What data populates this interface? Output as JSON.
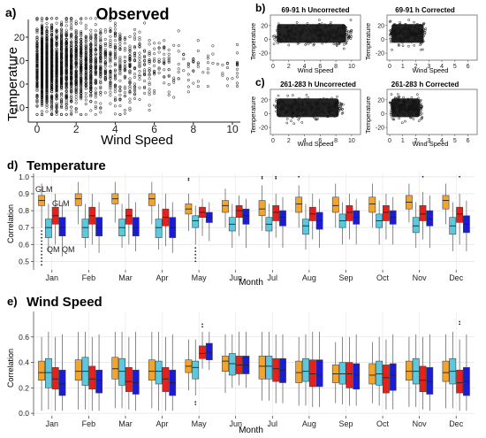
{
  "panels": {
    "a": {
      "letter": "a)",
      "title": "Observed",
      "xlabel": "Wind Speed",
      "ylabel": "Temperature",
      "xticks": [
        "0",
        "2",
        "4",
        "6",
        "8",
        "10"
      ],
      "yticks": [
        "-10",
        "0",
        "10",
        "20"
      ]
    },
    "b": {
      "letter": "b)",
      "left_title": "69-91 h Uncorrected",
      "right_title": "69-91 h Corrected",
      "xlabel": "Wind Speed",
      "ylabel": "Temperature",
      "left_xticks": [
        "0",
        "2",
        "4",
        "6",
        "8",
        "10"
      ],
      "right_xticks": [
        "0",
        "1",
        "2",
        "3",
        "4",
        "5",
        "6"
      ],
      "yticks": [
        "-20",
        "0",
        "20"
      ]
    },
    "c": {
      "letter": "c)",
      "left_title": "261-283 h Uncorrected",
      "right_title": "261-283 h Corrected",
      "xlabel": "Wind Speed",
      "ylabel": "Temperature",
      "left_xticks": [
        "0",
        "2",
        "4",
        "6",
        "8",
        "10"
      ],
      "right_xticks": [
        "0",
        "1",
        "2",
        "3",
        "4",
        "5",
        "6"
      ],
      "yticks": [
        "-20",
        "0",
        "20"
      ]
    },
    "d": {
      "letter": "d)",
      "title": "Temperature",
      "xlabel": "Month",
      "ylabel": "Correlation",
      "yticks": [
        "0.5",
        "0.6",
        "0.7",
        "0.8",
        "0.9",
        "1.0"
      ],
      "annotations": [
        "GLM",
        "GLM",
        "QM",
        "QM"
      ]
    },
    "e": {
      "letter": "e)",
      "title": "Wind Speed",
      "xlabel": "Month",
      "ylabel": "Correlation",
      "yticks": [
        "0.0",
        "0.2",
        "0.4",
        "0.6"
      ]
    }
  },
  "colors": {
    "orange": "#f2a52a",
    "cyan": "#5bc8dd",
    "red": "#e8201c",
    "blue": "#1b1bd6",
    "points": "#111111",
    "grid": "#e6e6e6"
  },
  "chart_data": [
    {
      "type": "scatter",
      "panel": "a",
      "title": "Observed",
      "xlabel": "Wind Speed",
      "ylabel": "Temperature",
      "xlim": [
        -0.5,
        10.5
      ],
      "ylim": [
        -17,
        32
      ],
      "grid": false,
      "description_of_cloud": {
        "x_range": [
          0,
          10.3
        ],
        "y_range": [
          -13,
          28
        ]
      }
    },
    {
      "type": "scatter",
      "panel": "b-left",
      "title": "69-91 h Uncorrected",
      "xlabel": "Wind Speed",
      "ylabel": "Temperature",
      "xlim": [
        -0.3,
        10.8
      ],
      "ylim": [
        -28,
        34
      ],
      "description_of_cloud": {
        "x_range": [
          0,
          10
        ],
        "y_range": [
          -15,
          28
        ]
      }
    },
    {
      "type": "scatter",
      "panel": "b-right",
      "title": "69-91 h Corrected",
      "xlabel": "Wind Speed",
      "ylabel": "Temperature",
      "xlim": [
        -0.2,
        6.5
      ],
      "ylim": [
        -28,
        34
      ],
      "description_of_cloud": {
        "x_range": [
          0,
          2.8
        ],
        "y_range": [
          -15,
          28
        ]
      }
    },
    {
      "type": "scatter",
      "panel": "c-left",
      "title": "261-283 h Uncorrected",
      "xlabel": "Wind Speed",
      "ylabel": "Temperature",
      "xlim": [
        -0.3,
        10.8
      ],
      "ylim": [
        -28,
        34
      ],
      "description_of_cloud": {
        "x_range": [
          0,
          9
        ],
        "y_range": [
          -15,
          25
        ]
      }
    },
    {
      "type": "scatter",
      "panel": "c-right",
      "title": "261-283 h Corrected",
      "xlabel": "Wind Speed",
      "ylabel": "Temperature",
      "xlim": [
        -0.2,
        6.5
      ],
      "ylim": [
        -28,
        34
      ],
      "description_of_cloud": {
        "x_range": [
          0,
          2.5
        ],
        "y_range": [
          -15,
          28
        ]
      }
    },
    {
      "type": "box",
      "panel": "d",
      "title": "Temperature",
      "xlabel": "Month",
      "ylabel": "Correlation",
      "ylim": [
        0.45,
        1.02
      ],
      "categories": [
        "Jan",
        "Feb",
        "Mar",
        "Apr",
        "May",
        "Jun",
        "Jul",
        "Aug",
        "Sep",
        "Oct",
        "Nov",
        "Dec"
      ],
      "series_order": [
        "orange",
        "cyan",
        "red",
        "blue"
      ],
      "boxes": [
        [
          [
            0.7,
            0.83,
            0.86,
            0.89,
            0.96
          ],
          [
            0.56,
            0.64,
            0.7,
            0.75,
            0.84
          ],
          [
            0.6,
            0.72,
            0.77,
            0.82,
            0.9
          ],
          [
            0.53,
            0.65,
            0.7,
            0.76,
            0.85
          ]
        ],
        [
          [
            0.72,
            0.83,
            0.87,
            0.9,
            0.97
          ],
          [
            0.58,
            0.64,
            0.7,
            0.75,
            0.84
          ],
          [
            0.6,
            0.72,
            0.77,
            0.82,
            0.9
          ],
          [
            0.55,
            0.65,
            0.7,
            0.76,
            0.85
          ]
        ],
        [
          [
            0.73,
            0.84,
            0.87,
            0.9,
            0.97
          ],
          [
            0.58,
            0.65,
            0.7,
            0.75,
            0.84
          ],
          [
            0.6,
            0.72,
            0.77,
            0.81,
            0.9
          ],
          [
            0.56,
            0.65,
            0.7,
            0.76,
            0.85
          ]
        ],
        [
          [
            0.72,
            0.83,
            0.87,
            0.9,
            0.97
          ],
          [
            0.57,
            0.64,
            0.7,
            0.75,
            0.84
          ],
          [
            0.59,
            0.71,
            0.76,
            0.81,
            0.9
          ],
          [
            0.55,
            0.64,
            0.7,
            0.76,
            0.85
          ]
        ],
        [
          [
            0.68,
            0.78,
            0.81,
            0.84,
            0.9
          ],
          [
            0.6,
            0.7,
            0.74,
            0.77,
            0.83
          ],
          [
            0.65,
            0.76,
            0.79,
            0.82,
            0.87
          ],
          [
            0.62,
            0.73,
            0.76,
            0.79,
            0.85
          ]
        ],
        [
          [
            0.7,
            0.79,
            0.83,
            0.86,
            0.93
          ],
          [
            0.58,
            0.68,
            0.72,
            0.76,
            0.84
          ],
          [
            0.65,
            0.76,
            0.8,
            0.83,
            0.89
          ],
          [
            0.58,
            0.72,
            0.77,
            0.81,
            0.87
          ]
        ],
        [
          [
            0.68,
            0.77,
            0.81,
            0.86,
            0.95
          ],
          [
            0.58,
            0.68,
            0.72,
            0.76,
            0.84
          ],
          [
            0.64,
            0.74,
            0.79,
            0.83,
            0.9
          ],
          [
            0.58,
            0.71,
            0.76,
            0.8,
            0.88
          ]
        ],
        [
          [
            0.7,
            0.79,
            0.84,
            0.88,
            0.95
          ],
          [
            0.57,
            0.66,
            0.71,
            0.75,
            0.84
          ],
          [
            0.63,
            0.74,
            0.78,
            0.82,
            0.9
          ],
          [
            0.58,
            0.69,
            0.74,
            0.79,
            0.87
          ]
        ],
        [
          [
            0.7,
            0.79,
            0.83,
            0.88,
            0.96
          ],
          [
            0.6,
            0.7,
            0.74,
            0.78,
            0.85
          ],
          [
            0.63,
            0.74,
            0.79,
            0.83,
            0.9
          ],
          [
            0.6,
            0.72,
            0.76,
            0.8,
            0.87
          ]
        ],
        [
          [
            0.7,
            0.79,
            0.84,
            0.88,
            0.96
          ],
          [
            0.6,
            0.7,
            0.74,
            0.78,
            0.86
          ],
          [
            0.63,
            0.74,
            0.79,
            0.83,
            0.9
          ],
          [
            0.6,
            0.72,
            0.76,
            0.8,
            0.88
          ]
        ],
        [
          [
            0.73,
            0.81,
            0.85,
            0.89,
            0.96
          ],
          [
            0.58,
            0.67,
            0.71,
            0.76,
            0.85
          ],
          [
            0.63,
            0.74,
            0.78,
            0.83,
            0.91
          ],
          [
            0.58,
            0.71,
            0.75,
            0.8,
            0.89
          ]
        ],
        [
          [
            0.72,
            0.81,
            0.86,
            0.89,
            0.96
          ],
          [
            0.56,
            0.66,
            0.71,
            0.76,
            0.85
          ],
          [
            0.6,
            0.73,
            0.78,
            0.82,
            0.9
          ],
          [
            0.56,
            0.67,
            0.72,
            0.77,
            0.86
          ]
        ]
      ],
      "outliers": [
        {
          "month": 0,
          "series": 0,
          "values": [
            0.68,
            0.66,
            0.64,
            0.62,
            0.6,
            0.58,
            0.56,
            0.54,
            0.52,
            0.5,
            0.48
          ]
        },
        {
          "month": 4,
          "series": 0,
          "values": [
            0.99,
            0.98
          ]
        },
        {
          "month": 4,
          "series": 1,
          "values": [
            0.58,
            0.56,
            0.54,
            0.52,
            0.5
          ]
        },
        {
          "month": 6,
          "series": 0,
          "values": [
            1.0,
            0.99
          ]
        },
        {
          "month": 6,
          "series": 2,
          "values": [
            1.0,
            0.99
          ]
        },
        {
          "month": 7,
          "series": 0,
          "values": [
            1.0
          ]
        },
        {
          "month": 10,
          "series": 2,
          "values": [
            1.0
          ]
        },
        {
          "month": 11,
          "series": 2,
          "values": [
            1.0
          ]
        }
      ]
    },
    {
      "type": "box",
      "panel": "e",
      "title": "Wind Speed",
      "xlabel": "Month",
      "ylabel": "Correlation",
      "ylim": [
        -0.02,
        0.8
      ],
      "categories": [
        "Jan",
        "Feb",
        "Mar",
        "Apr",
        "May",
        "Jun",
        "Jul",
        "Aug",
        "Sep",
        "Oct",
        "Nov",
        "Dec"
      ],
      "series_order": [
        "orange",
        "cyan",
        "red",
        "blue"
      ],
      "boxes": [
        [
          [
            0.02,
            0.26,
            0.32,
            0.41,
            0.6
          ],
          [
            0.03,
            0.2,
            0.32,
            0.43,
            0.64
          ],
          [
            0.02,
            0.19,
            0.27,
            0.36,
            0.6
          ],
          [
            0.02,
            0.14,
            0.23,
            0.34,
            0.62
          ]
        ],
        [
          [
            0.03,
            0.26,
            0.33,
            0.42,
            0.64
          ],
          [
            0.03,
            0.22,
            0.33,
            0.44,
            0.64
          ],
          [
            0.02,
            0.19,
            0.27,
            0.37,
            0.6
          ],
          [
            0.02,
            0.16,
            0.26,
            0.34,
            0.62
          ]
        ],
        [
          [
            0.04,
            0.27,
            0.35,
            0.44,
            0.64
          ],
          [
            0.04,
            0.22,
            0.33,
            0.43,
            0.64
          ],
          [
            0.03,
            0.17,
            0.25,
            0.36,
            0.6
          ],
          [
            0.02,
            0.15,
            0.24,
            0.34,
            0.64
          ]
        ],
        [
          [
            0.04,
            0.26,
            0.33,
            0.42,
            0.64
          ],
          [
            0.02,
            0.23,
            0.33,
            0.41,
            0.64
          ],
          [
            0.02,
            0.17,
            0.27,
            0.36,
            0.6
          ],
          [
            0.02,
            0.14,
            0.24,
            0.34,
            0.62
          ]
        ],
        [
          [
            0.18,
            0.32,
            0.37,
            0.42,
            0.58
          ],
          [
            0.14,
            0.27,
            0.36,
            0.41,
            0.58
          ],
          [
            0.35,
            0.43,
            0.47,
            0.53,
            0.64
          ],
          [
            0.34,
            0.42,
            0.48,
            0.55,
            0.64
          ]
        ],
        [
          [
            0.16,
            0.33,
            0.41,
            0.45,
            0.62
          ],
          [
            0.2,
            0.3,
            0.39,
            0.47,
            0.62
          ],
          [
            0.22,
            0.31,
            0.38,
            0.45,
            0.64
          ],
          [
            0.2,
            0.31,
            0.38,
            0.45,
            0.64
          ]
        ],
        [
          [
            0.1,
            0.27,
            0.37,
            0.45,
            0.64
          ],
          [
            0.1,
            0.27,
            0.37,
            0.45,
            0.64
          ],
          [
            0.08,
            0.25,
            0.35,
            0.43,
            0.62
          ],
          [
            0.08,
            0.24,
            0.34,
            0.43,
            0.62
          ]
        ],
        [
          [
            0.06,
            0.24,
            0.32,
            0.41,
            0.6
          ],
          [
            0.06,
            0.25,
            0.33,
            0.43,
            0.62
          ],
          [
            0.05,
            0.21,
            0.31,
            0.42,
            0.64
          ],
          [
            0.05,
            0.21,
            0.3,
            0.42,
            0.64
          ]
        ],
        [
          [
            0.08,
            0.24,
            0.31,
            0.38,
            0.56
          ],
          [
            0.07,
            0.23,
            0.31,
            0.4,
            0.6
          ],
          [
            0.06,
            0.2,
            0.31,
            0.4,
            0.6
          ],
          [
            0.06,
            0.19,
            0.3,
            0.39,
            0.62
          ]
        ],
        [
          [
            0.08,
            0.23,
            0.3,
            0.39,
            0.56
          ],
          [
            0.06,
            0.22,
            0.31,
            0.41,
            0.6
          ],
          [
            0.03,
            0.16,
            0.28,
            0.38,
            0.58
          ],
          [
            0.03,
            0.18,
            0.3,
            0.39,
            0.62
          ]
        ],
        [
          [
            0.05,
            0.26,
            0.33,
            0.41,
            0.6
          ],
          [
            0.05,
            0.23,
            0.33,
            0.43,
            0.62
          ],
          [
            0.03,
            0.17,
            0.26,
            0.37,
            0.6
          ],
          [
            0.02,
            0.15,
            0.25,
            0.36,
            0.62
          ]
        ],
        [
          [
            0.04,
            0.25,
            0.32,
            0.41,
            0.62
          ],
          [
            0.04,
            0.23,
            0.33,
            0.43,
            0.64
          ],
          [
            0.02,
            0.16,
            0.24,
            0.34,
            0.58
          ],
          [
            0.02,
            0.14,
            0.25,
            0.36,
            0.62
          ]
        ]
      ],
      "outliers": [
        {
          "month": 4,
          "series": 1,
          "values": [
            0.09,
            0.07
          ]
        },
        {
          "month": 4,
          "series": 2,
          "values": [
            0.7,
            0.68
          ]
        },
        {
          "month": 11,
          "series": 2,
          "values": [
            0.72,
            0.7
          ]
        }
      ]
    }
  ]
}
